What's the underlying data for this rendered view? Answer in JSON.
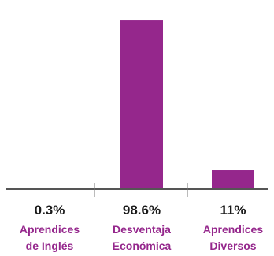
{
  "chart_data": {
    "type": "bar",
    "categories": [
      {
        "lines": [
          "Aprendices",
          "de Inglés"
        ]
      },
      {
        "lines": [
          "Desventaja",
          "Económica"
        ]
      },
      {
        "lines": [
          "Aprendices",
          "Diversos"
        ]
      }
    ],
    "values": [
      0.3,
      98.6,
      11
    ],
    "value_labels": [
      "0.3%",
      "98.6%",
      "11%"
    ],
    "ylim": [
      0,
      100
    ],
    "title": "",
    "xlabel": "",
    "ylabel": "",
    "grid": false,
    "bar_color": "#95278c",
    "label_color": "#95278c"
  }
}
